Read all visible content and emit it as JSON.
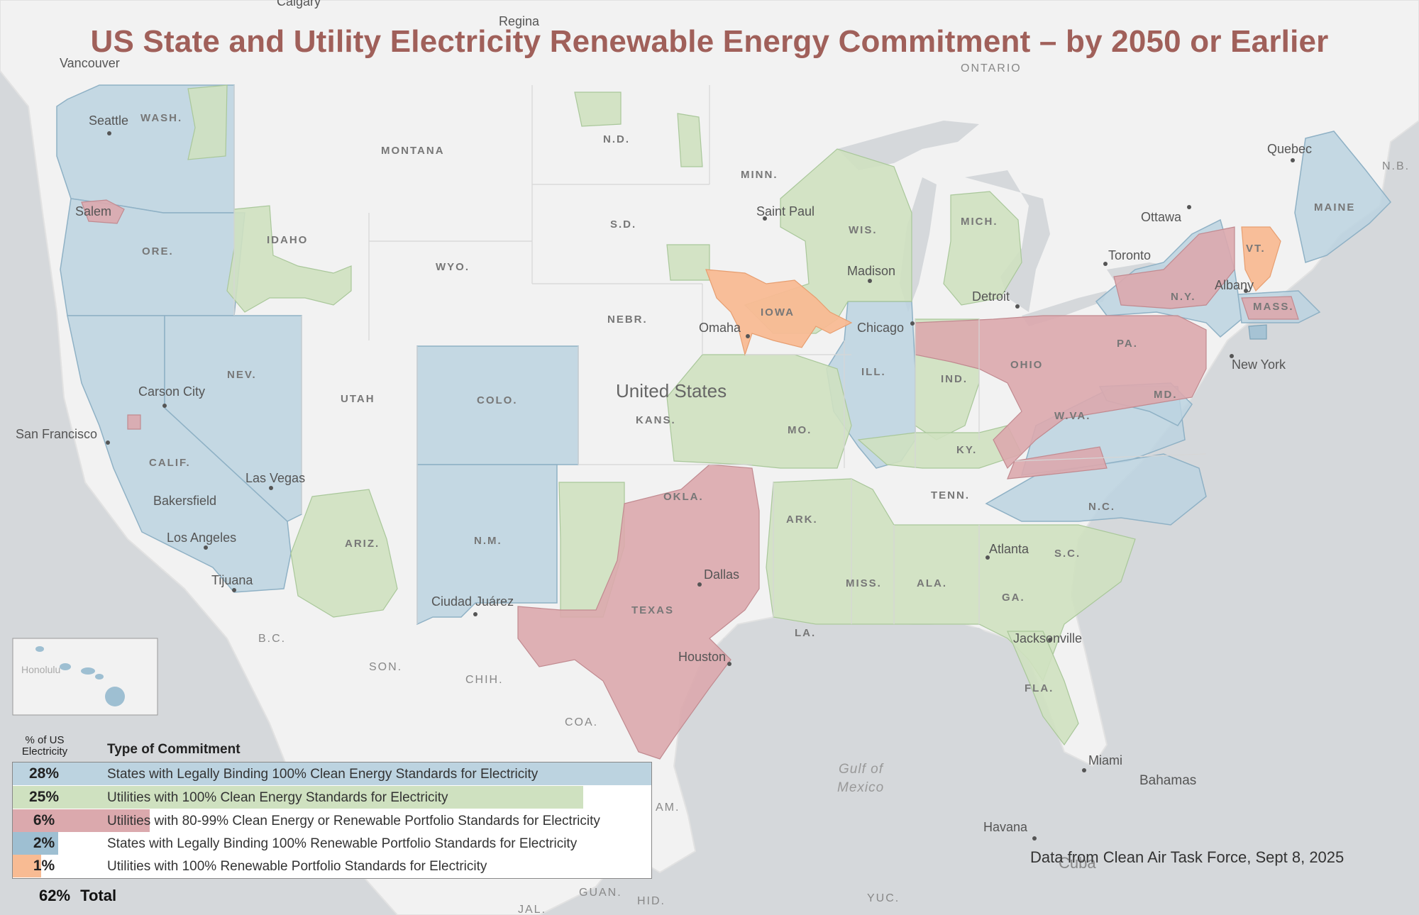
{
  "title": "US State and Utility Electricity Renewable Energy Commitment – by 2050 or Earlier",
  "credit": "Data from Clean Air Task Force, Sept 8, 2025",
  "colors": {
    "land": "#f4f4f4",
    "water": "#d5d8db",
    "binding_clean": "#bcd3e0",
    "utility_clean": "#cfe1c0",
    "utility_80_99": "#dba9ad",
    "binding_rps": "#9ebfd2",
    "utility_rps": "#f8bb93",
    "title": "#a0605a"
  },
  "legend": {
    "header_pct": "% of US Electricity",
    "header_type": "Type of Commitment",
    "rows": [
      {
        "pct": "28%",
        "label": "States with Legally Binding 100% Clean Energy Standards for Electricity",
        "value": 28,
        "color": "#bcd3e0"
      },
      {
        "pct": "25%",
        "label": "Utilities with 100% Clean Energy Standards for Electricity",
        "value": 25,
        "color": "#cfe1c0"
      },
      {
        "pct": "6%",
        "label": "Utilities with 80-99% Clean Energy or Renewable Portfolio Standards for Electricity",
        "value": 6,
        "color": "#dba9ad"
      },
      {
        "pct": "2%",
        "label": "States with Legally Binding 100% Renewable Portfolio Standards for Electricity",
        "value": 2,
        "color": "#9ebfd2"
      },
      {
        "pct": "1%",
        "label": "Utilities with 100% Renewable Portfolio Standards for Electricity",
        "value": 1,
        "color": "#f8bb93"
      }
    ],
    "total_pct": "62%",
    "total_label": "Total"
  },
  "labels": {
    "cities": [
      "Calgary",
      "Regina",
      "Vancouver",
      "Seattle",
      "Salem",
      "Carson City",
      "San Francisco",
      "Las Vegas",
      "Bakersfield",
      "Los Angeles",
      "Tijuana",
      "Ciudad Juárez",
      "Saint Paul",
      "Madison",
      "Omaha",
      "Chicago",
      "Detroit",
      "Toronto",
      "Ottawa",
      "Quebec",
      "Albany",
      "New York",
      "Dallas",
      "Houston",
      "Atlanta",
      "Jacksonville",
      "Miami",
      "Havana",
      "Honolulu"
    ],
    "states": [
      "WASH.",
      "ORE.",
      "IDAHO",
      "MONTANA",
      "WYO.",
      "NEV.",
      "UTAH",
      "CALIF.",
      "ARIZ.",
      "COLO.",
      "N.M.",
      "N.D.",
      "S.D.",
      "NEBR.",
      "KANS.",
      "OKLA.",
      "TEXAS",
      "MINN.",
      "IOWA",
      "MO.",
      "ARK.",
      "LA.",
      "WIS.",
      "ILL.",
      "MICH.",
      "IND.",
      "OHIO",
      "KY.",
      "TENN.",
      "MISS.",
      "ALA.",
      "GA.",
      "FLA.",
      "S.C.",
      "N.C.",
      "W.VA.",
      "PA.",
      "N.Y.",
      "VT.",
      "MASS.",
      "MAINE",
      "MD."
    ],
    "regions": [
      "ONTARIO",
      "N.B.",
      "B.C.",
      "SON.",
      "CHIH.",
      "COA.",
      "GUAN.",
      "HID.",
      "JAL.",
      "YUC.",
      "AM."
    ],
    "countries": [
      "United States",
      "Bahamas",
      "Cuba"
    ],
    "water": [
      "Gulf of",
      "Mexico"
    ]
  }
}
